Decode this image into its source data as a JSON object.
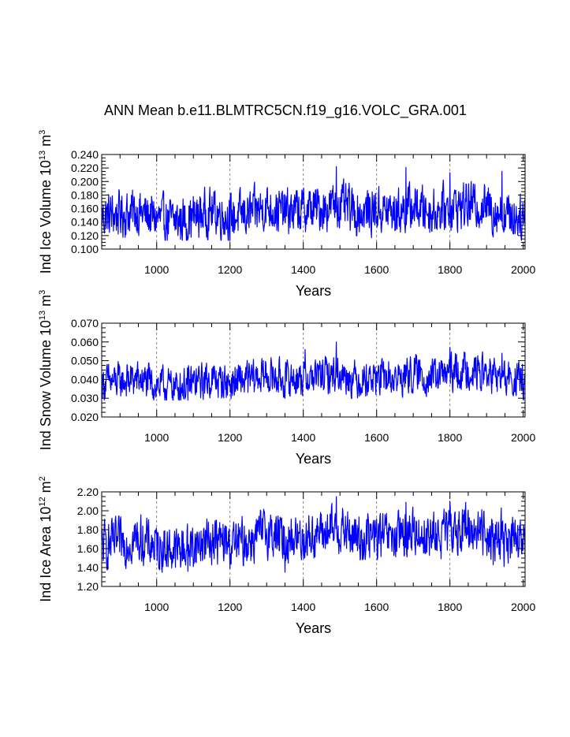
{
  "title": "ANN Mean b.e11.BLMTRC5CN.f19_g16.VOLC_GRA.001",
  "chart_data": [
    {
      "type": "line",
      "ylabel_main": "Ind Ice Volume 10",
      "ylabel_exp": "13",
      "ylabel_unit": " m",
      "ylabel_unit_exp": "3",
      "xlabel": "Years",
      "xlim": [
        850,
        2005
      ],
      "ylim": [
        0.1,
        0.24
      ],
      "yticks": [
        "0.100",
        "0.120",
        "0.140",
        "0.160",
        "0.180",
        "0.200",
        "0.220",
        "0.240"
      ],
      "xticks": [
        "1000",
        "1200",
        "1400",
        "1600",
        "1800",
        "2000"
      ],
      "grid_x": [
        1000,
        1200,
        1400,
        1600,
        1800
      ],
      "color": "#0000ff",
      "series": [
        {
          "x": [
            850,
            900,
            950,
            1000,
            1050,
            1100,
            1150,
            1200,
            1250,
            1300,
            1350,
            1400,
            1450,
            1500,
            1550,
            1600,
            1650,
            1700,
            1750,
            1800,
            1850,
            1900,
            1950,
            2005
          ],
          "values": [
            0.149,
            0.152,
            0.155,
            0.145,
            0.141,
            0.147,
            0.156,
            0.147,
            0.152,
            0.163,
            0.154,
            0.158,
            0.161,
            0.165,
            0.153,
            0.158,
            0.154,
            0.163,
            0.156,
            0.162,
            0.166,
            0.163,
            0.152,
            0.148
          ],
          "min": 0.113,
          "max": 0.222,
          "spikes": [
            [
              1490,
              0.222
            ],
            [
              1680,
              0.221
            ],
            [
              1800,
              0.213
            ],
            [
              1942,
              0.215
            ],
            [
              1918,
              0.118
            ],
            [
              1200,
              0.113
            ],
            [
              1085,
              0.115
            ]
          ]
        }
      ]
    },
    {
      "type": "line",
      "ylabel_main": "Ind Snow Volume 10",
      "ylabel_exp": "13",
      "ylabel_unit": " m",
      "ylabel_unit_exp": "3",
      "xlabel": "Years",
      "xlim": [
        850,
        2005
      ],
      "ylim": [
        0.02,
        0.07
      ],
      "yticks": [
        "0.020",
        "0.030",
        "0.040",
        "0.050",
        "0.060",
        "0.070"
      ],
      "xticks": [
        "1000",
        "1200",
        "1400",
        "1600",
        "1800",
        "2000"
      ],
      "grid_x": [
        1000,
        1200,
        1400,
        1600,
        1800
      ],
      "color": "#0000ff",
      "series": [
        {
          "x": [
            850,
            900,
            950,
            1000,
            1050,
            1100,
            1150,
            1200,
            1250,
            1300,
            1350,
            1400,
            1450,
            1500,
            1550,
            1600,
            1650,
            1700,
            1750,
            1800,
            1850,
            1900,
            1950,
            2005
          ],
          "values": [
            0.038,
            0.039,
            0.04,
            0.037,
            0.036,
            0.038,
            0.04,
            0.038,
            0.04,
            0.042,
            0.04,
            0.041,
            0.042,
            0.043,
            0.04,
            0.041,
            0.04,
            0.043,
            0.041,
            0.043,
            0.045,
            0.043,
            0.04,
            0.039
          ],
          "min": 0.029,
          "max": 0.06,
          "spikes": [
            [
              1490,
              0.06
            ],
            [
              1800,
              0.057
            ],
            [
              1405,
              0.056
            ],
            [
              1942,
              0.054
            ],
            [
              1085,
              0.029
            ],
            [
              1350,
              0.03
            ]
          ]
        }
      ]
    },
    {
      "type": "line",
      "ylabel_main": "Ind Ice Area 10",
      "ylabel_exp": "12",
      "ylabel_unit": " m",
      "ylabel_unit_exp": "2",
      "xlabel": "Years",
      "xlim": [
        850,
        2005
      ],
      "ylim": [
        1.2,
        2.2
      ],
      "yticks": [
        "1.20",
        "1.40",
        "1.60",
        "1.80",
        "2.00",
        "2.20"
      ],
      "xticks": [
        "1000",
        "1200",
        "1400",
        "1600",
        "1800",
        "2000"
      ],
      "grid_x": [
        1000,
        1200,
        1400,
        1600,
        1800
      ],
      "color": "#0000ff",
      "series": [
        {
          "x": [
            850,
            900,
            950,
            1000,
            1050,
            1100,
            1150,
            1200,
            1250,
            1300,
            1350,
            1400,
            1450,
            1500,
            1550,
            1600,
            1650,
            1700,
            1750,
            1800,
            1850,
            1900,
            1950,
            2005
          ],
          "values": [
            1.63,
            1.66,
            1.7,
            1.62,
            1.58,
            1.63,
            1.7,
            1.64,
            1.68,
            1.78,
            1.7,
            1.72,
            1.76,
            1.8,
            1.7,
            1.73,
            1.7,
            1.78,
            1.72,
            1.78,
            1.82,
            1.78,
            1.68,
            1.65
          ],
          "min": 1.35,
          "max": 2.15,
          "spikes": [
            [
              1490,
              2.15
            ],
            [
              1800,
              2.1
            ],
            [
              1680,
              2.09
            ],
            [
              1940,
              2.03
            ],
            [
              1350,
              1.35
            ],
            [
              1085,
              1.36
            ],
            [
              1918,
              1.43
            ]
          ]
        }
      ]
    }
  ]
}
